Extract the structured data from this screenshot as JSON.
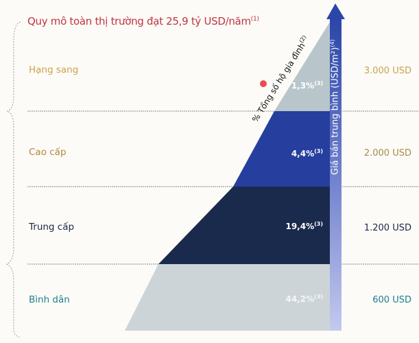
{
  "title": {
    "text": "Quy mô toàn thị trường đạt 25,9 tỷ USD/năm",
    "note": "(1)"
  },
  "axis_left": {
    "text": "% Tổng số hộ gia đình",
    "note": "(2)"
  },
  "axis_right": {
    "text": "Giá bán trung bình (USD/m²)",
    "note": "(4)"
  },
  "segments": [
    {
      "label": "Hạng sang",
      "share": "1,3%",
      "note": "(3)",
      "price": "3.000 USD",
      "label_color": "#c9a24a",
      "fill": "#b8c6cb"
    },
    {
      "label": "Cao cấp",
      "share": "4,4%",
      "note": "(3)",
      "price": "2.000 USD",
      "label_color": "#b08a3a",
      "fill": "#263e9e"
    },
    {
      "label": "Trung cấp",
      "share": "19,4%",
      "note": "(3)",
      "price": "1.200 USD",
      "label_color": "#1c2640",
      "fill": "#1a2a4d"
    },
    {
      "label": "Bình dân",
      "share": "44,2%",
      "note": "(3)",
      "price": "600 USD",
      "label_color": "#1f7d8c",
      "fill": "#cdd4d7"
    }
  ]
}
